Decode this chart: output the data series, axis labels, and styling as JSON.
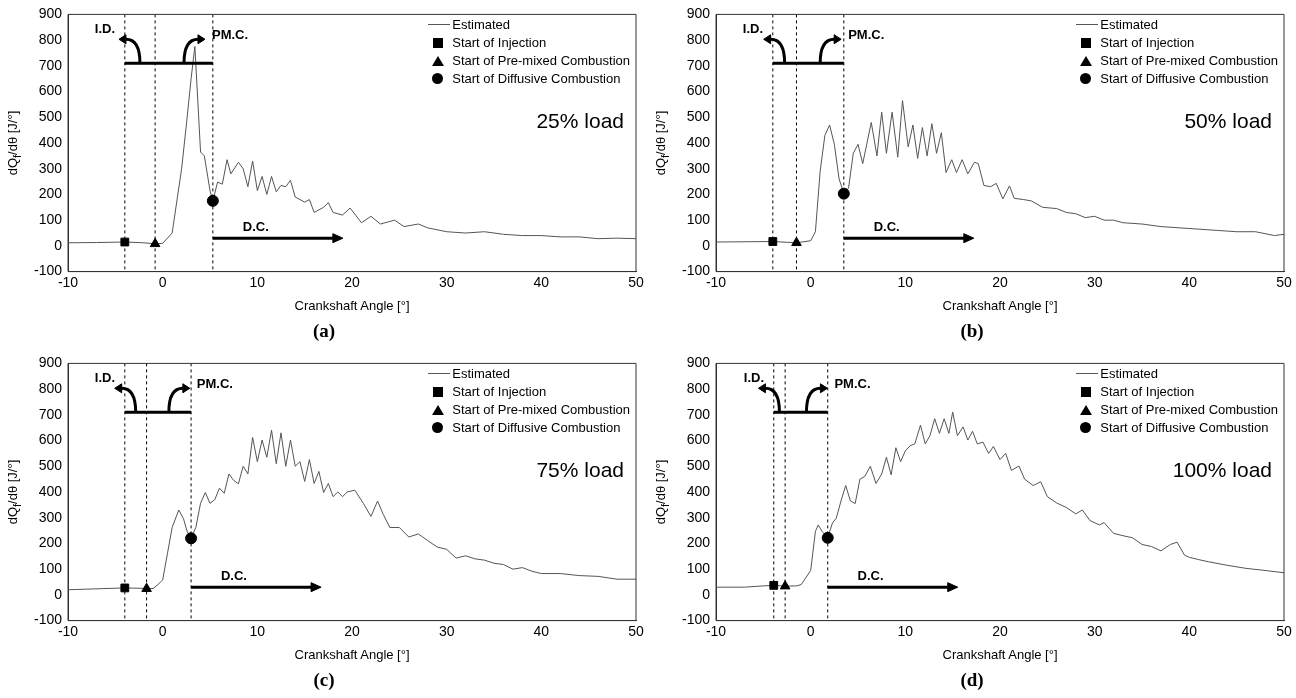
{
  "chart_data": [
    {
      "type": "line",
      "xlabel": "Crankshaft Angle [°]",
      "ylabel": "dQ$_{f}$/dθ [J/°]",
      "xlim": [
        -10,
        50
      ],
      "xticks": [
        -10,
        0,
        10,
        20,
        30,
        40,
        50
      ],
      "ylim": [
        -100,
        900
      ],
      "yticks": [
        -100,
        0,
        100,
        200,
        300,
        400,
        500,
        600,
        700,
        800,
        900
      ],
      "legend": "top right",
      "series": [
        {
          "name": "Estimated",
          "type": "line",
          "color": "#555555",
          "marker": "none",
          "x": [
            -10,
            -7,
            -4,
            -2,
            -0.8,
            0,
            1,
            2,
            2.5,
            3,
            3.4,
            4,
            4.4,
            5,
            5.3,
            5.8,
            6.3,
            6.8,
            7.2,
            8,
            8.5,
            9,
            9.5,
            10,
            10.5,
            11,
            11.5,
            12,
            12.5,
            13,
            13.5,
            14,
            15,
            15.5,
            16,
            17,
            17.5,
            18,
            19,
            19.8,
            21,
            22,
            23,
            24.5,
            25.5,
            27,
            28,
            30,
            32,
            34,
            36,
            38,
            40,
            42,
            44,
            46,
            48,
            50
          ],
          "values": [
            12,
            13,
            15,
            12,
            8,
            10,
            50,
            300,
            470,
            650,
            775,
            365,
            350,
            215,
            175,
            248,
            240,
            335,
            280,
            325,
            300,
            230,
            330,
            215,
            270,
            200,
            270,
            210,
            235,
            230,
            255,
            190,
            170,
            180,
            130,
            150,
            168,
            130,
            120,
            147,
            90,
            115,
            85,
            100,
            75,
            85,
            70,
            55,
            50,
            55,
            45,
            40,
            40,
            35,
            35,
            28,
            30,
            28
          ]
        },
        {
          "name": "Start of Injection",
          "type": "scatter",
          "color": "#000000",
          "marker": "square",
          "x": [
            -4.0
          ],
          "values": [
            15
          ]
        },
        {
          "name": "Start of Pre-mixed Combustion",
          "type": "scatter",
          "color": "#000000",
          "marker": "triangle",
          "x": [
            -0.8
          ],
          "values": [
            8
          ]
        },
        {
          "name": "Start of Diffusive Combustion",
          "type": "scatter",
          "color": "#000000",
          "marker": "circle",
          "x": [
            5.3
          ],
          "values": [
            175
          ]
        }
      ],
      "ref_lines": [
        {
          "axis": "x",
          "value": -4.0,
          "color": "#000000",
          "line_style": "dashed"
        },
        {
          "axis": "x",
          "value": -0.8,
          "color": "#000000",
          "line_style": "dashed"
        },
        {
          "axis": "x",
          "value": 5.3,
          "color": "#000000",
          "line_style": "dashed"
        }
      ],
      "annotations": [
        "I.D.",
        "PM.C.",
        "D.C.",
        "25% load",
        "(a)"
      ]
    },
    {
      "type": "line",
      "xlabel": "Crankshaft Angle [°]",
      "ylabel": "dQ$_{f}$/dθ [J/°]",
      "xlim": [
        -10,
        50
      ],
      "xticks": [
        -10,
        0,
        10,
        20,
        30,
        40,
        50
      ],
      "ylim": [
        -100,
        900
      ],
      "yticks": [
        -100,
        0,
        100,
        200,
        300,
        400,
        500,
        600,
        700,
        800,
        900
      ],
      "legend": "top right",
      "series": [
        {
          "name": "Estimated",
          "type": "line",
          "color": "#555555",
          "marker": "none",
          "x": [
            -10,
            -4,
            -1.5,
            0,
            0.5,
            1,
            1.5,
            2,
            2.5,
            3,
            3.5,
            4,
            4.5,
            5,
            5.5,
            6.4,
            7,
            7.5,
            8,
            8.6,
            9.2,
            9.7,
            10.3,
            10.8,
            11.3,
            11.8,
            12.3,
            12.8,
            13.3,
            13.8,
            14.3,
            14.9,
            15.4,
            16,
            16.6,
            17.3,
            17.7,
            18.3,
            19,
            19.6,
            20.3,
            21,
            21.5,
            22.5,
            23.3,
            24.5,
            26,
            27,
            28,
            29,
            30,
            31,
            32,
            33,
            35,
            37,
            39,
            41,
            43,
            45,
            47,
            49,
            50
          ],
          "values": [
            15,
            17,
            12,
            20,
            55,
            290,
            430,
            470,
            395,
            260,
            205,
            225,
            360,
            395,
            320,
            480,
            350,
            520,
            360,
            520,
            345,
            565,
            385,
            470,
            340,
            460,
            350,
            475,
            360,
            440,
            285,
            335,
            285,
            335,
            280,
            325,
            320,
            235,
            230,
            243,
            183,
            233,
            185,
            180,
            175,
            150,
            145,
            130,
            125,
            110,
            115,
            100,
            100,
            90,
            85,
            75,
            70,
            65,
            60,
            55,
            55,
            40,
            45
          ]
        },
        {
          "name": "Start of Injection",
          "type": "scatter",
          "color": "#000000",
          "marker": "square",
          "x": [
            -4.0
          ],
          "values": [
            17
          ]
        },
        {
          "name": "Start of Pre-mixed Combustion",
          "type": "scatter",
          "color": "#000000",
          "marker": "triangle",
          "x": [
            -1.5
          ],
          "values": [
            12
          ]
        },
        {
          "name": "Start of Diffusive Combustion",
          "type": "scatter",
          "color": "#000000",
          "marker": "circle",
          "x": [
            3.5
          ],
          "values": [
            203
          ]
        }
      ],
      "ref_lines": [
        {
          "axis": "x",
          "value": -4.0,
          "color": "#000000",
          "line_style": "dashed"
        },
        {
          "axis": "x",
          "value": -1.5,
          "color": "#000000",
          "line_style": "dashed"
        },
        {
          "axis": "x",
          "value": 3.5,
          "color": "#000000",
          "line_style": "dashed"
        }
      ],
      "annotations": [
        "I.D.",
        "PM.C.",
        "D.C.",
        "50% load",
        "(b)"
      ]
    },
    {
      "type": "line",
      "xlabel": "Crankshaft Angle [°]",
      "ylabel": "dQ$_{f}$/dθ [J/°]",
      "xlim": [
        -10,
        50
      ],
      "xticks": [
        -10,
        0,
        10,
        20,
        30,
        40,
        50
      ],
      "ylim": [
        -100,
        900
      ],
      "yticks": [
        -100,
        0,
        100,
        200,
        300,
        400,
        500,
        600,
        700,
        800,
        900
      ],
      "legend": "top right",
      "series": [
        {
          "name": "Estimated",
          "type": "line",
          "color": "#555555",
          "marker": "none",
          "x": [
            -10,
            -4,
            -1.7,
            -1,
            -0.5,
            0,
            0.5,
            1,
            1.7,
            2.2,
            2.6,
            3,
            3.5,
            4,
            4.5,
            5,
            5.5,
            6,
            6.5,
            7,
            7.5,
            8,
            8.5,
            9,
            9.5,
            10,
            10.5,
            11,
            11.5,
            12,
            12.5,
            13,
            13.5,
            14,
            14.5,
            15,
            15.5,
            16,
            16.5,
            17,
            17.5,
            18,
            18.5,
            19,
            19.5,
            20.3,
            21.2,
            22,
            22.7,
            23.3,
            24,
            25,
            26,
            27,
            28,
            29,
            30,
            31,
            32,
            33,
            34,
            35,
            36,
            37,
            38,
            39,
            40,
            42,
            44,
            46,
            48,
            50
          ],
          "values": [
            20,
            27,
            25,
            25,
            40,
            58,
            160,
            262,
            330,
            296,
            245,
            220,
            262,
            356,
            398,
            356,
            370,
            415,
            395,
            470,
            445,
            432,
            500,
            470,
            612,
            518,
            602,
            535,
            640,
            510,
            630,
            500,
            602,
            500,
            518,
            441,
            526,
            433,
            480,
            398,
            433,
            382,
            400,
            382,
            400,
            407,
            356,
            305,
            365,
            313,
            262,
            262,
            225,
            237,
            211,
            186,
            177,
            143,
            152,
            140,
            135,
            123,
            118,
            100,
            106,
            92,
            83,
            83,
            75,
            72,
            61,
            61
          ]
        },
        {
          "name": "Start of Injection",
          "type": "scatter",
          "color": "#000000",
          "marker": "square",
          "x": [
            -4.0
          ],
          "values": [
            27
          ]
        },
        {
          "name": "Start of Pre-mixed Combustion",
          "type": "scatter",
          "color": "#000000",
          "marker": "triangle",
          "x": [
            -1.7
          ],
          "values": [
            24
          ]
        },
        {
          "name": "Start of Diffusive Combustion",
          "type": "scatter",
          "color": "#000000",
          "marker": "circle",
          "x": [
            3.0
          ],
          "values": [
            220
          ]
        }
      ],
      "ref_lines": [
        {
          "axis": "x",
          "value": -4.0,
          "color": "#000000",
          "line_style": "dashed"
        },
        {
          "axis": "x",
          "value": -1.7,
          "color": "#000000",
          "line_style": "dashed"
        },
        {
          "axis": "x",
          "value": 3.0,
          "color": "#000000",
          "line_style": "dashed"
        }
      ],
      "annotations": [
        "I.D.",
        "PM.C.",
        "D.C.",
        "75% load",
        "(c)"
      ]
    },
    {
      "type": "line",
      "xlabel": "Crankshaft Angle [°]",
      "ylabel": "dQ$_{f}$/dθ [J/°]",
      "xlim": [
        -10,
        50
      ],
      "xticks": [
        -10,
        0,
        10,
        20,
        30,
        40,
        50
      ],
      "ylim": [
        -100,
        900
      ],
      "yticks": [
        -100,
        0,
        100,
        200,
        300,
        400,
        500,
        600,
        700,
        800,
        900
      ],
      "legend": "top right",
      "series": [
        {
          "name": "Estimated",
          "type": "line",
          "color": "#555555",
          "marker": "none",
          "x": [
            -10,
            -7,
            -5,
            -3.9,
            -2.7,
            -1.5,
            -1,
            0,
            0.5,
            0.8,
            1.2,
            1.8,
            2.3,
            2.7,
            3.2,
            3.7,
            4.2,
            4.7,
            5.2,
            5.7,
            6.3,
            6.9,
            7.5,
            8,
            8.5,
            9,
            9.5,
            10,
            10.5,
            11,
            11.6,
            12.1,
            12.6,
            13.1,
            13.6,
            14.1,
            14.6,
            15,
            15.5,
            16.1,
            16.6,
            17.1,
            17.6,
            18.2,
            18.8,
            19.3,
            20,
            20.6,
            21.2,
            22,
            22.6,
            23.5,
            24.3,
            25,
            26,
            27,
            28,
            28.7,
            29.5,
            30.5,
            31,
            32,
            33,
            34,
            35,
            36,
            37,
            38,
            38.7,
            39.5,
            40,
            41,
            42,
            44,
            46,
            48,
            50
          ],
          "values": [
            30,
            30,
            35,
            37,
            34,
            35,
            40,
            95,
            247,
            272,
            247,
            222,
            280,
            298,
            365,
            425,
            365,
            355,
            450,
            460,
            500,
            433,
            470,
            535,
            467,
            572,
            518,
            560,
            580,
            587,
            660,
            587,
            619,
            685,
            628,
            685,
            628,
            711,
            619,
            653,
            602,
            636,
            587,
            594,
            550,
            577,
            526,
            550,
            484,
            501,
            450,
            425,
            440,
            382,
            357,
            340,
            315,
            330,
            289,
            272,
            281,
            239,
            230,
            222,
            196,
            188,
            171,
            196,
            205,
            154,
            146,
            137,
            129,
            115,
            103,
            95,
            86
          ]
        },
        {
          "name": "Start of Injection",
          "type": "scatter",
          "color": "#000000",
          "marker": "square",
          "x": [
            -3.9
          ],
          "values": [
            37
          ]
        },
        {
          "name": "Start of Pre-mixed Combustion",
          "type": "scatter",
          "color": "#000000",
          "marker": "triangle",
          "x": [
            -2.7
          ],
          "values": [
            34
          ]
        },
        {
          "name": "Start of Diffusive Combustion",
          "type": "scatter",
          "color": "#000000",
          "marker": "circle",
          "x": [
            1.8
          ],
          "values": [
            222
          ]
        }
      ],
      "ref_lines": [
        {
          "axis": "x",
          "value": -3.9,
          "color": "#000000",
          "line_style": "dashed"
        },
        {
          "axis": "x",
          "value": -2.7,
          "color": "#000000",
          "line_style": "dashed"
        },
        {
          "axis": "x",
          "value": 1.8,
          "color": "#000000",
          "line_style": "dashed"
        }
      ],
      "annotations": [
        "I.D.",
        "PM.C.",
        "D.C.",
        "100% load",
        "(d)"
      ]
    }
  ]
}
